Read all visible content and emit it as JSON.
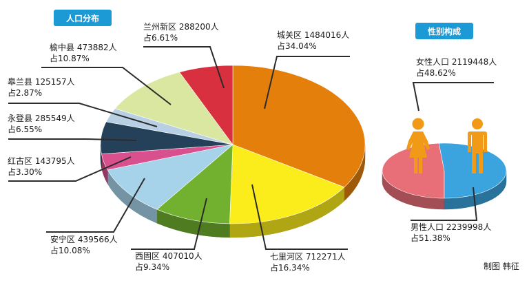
{
  "chart_data": [
    {
      "type": "pie",
      "title": "人口分布",
      "style": "3d",
      "slices": [
        {
          "name": "城关区",
          "count_label": "1484016人",
          "percent_label": "占34.04%",
          "value": 34.04,
          "color": "#e57f0c"
        },
        {
          "name": "七里河区",
          "count_label": "712271人",
          "percent_label": "占16.34%",
          "value": 16.34,
          "color": "#fbed1c"
        },
        {
          "name": "西固区",
          "count_label": "407010人",
          "percent_label": "占9.34%",
          "value": 9.34,
          "color": "#72b12f"
        },
        {
          "name": "安宁区",
          "count_label": "439566人",
          "percent_label": "占10.08%",
          "value": 10.08,
          "color": "#a6d3ea"
        },
        {
          "name": "红古区",
          "count_label": "143795人",
          "percent_label": "占3.30%",
          "value": 3.3,
          "color": "#d8508e"
        },
        {
          "name": "永登县",
          "count_label": "285549人",
          "percent_label": "占6.55%",
          "value": 6.55,
          "color": "#254159"
        },
        {
          "name": "皋兰县",
          "count_label": "125157人",
          "percent_label": "占2.87%",
          "value": 2.87,
          "color": "#b9d0e4"
        },
        {
          "name": "榆中县",
          "count_label": "473882人",
          "percent_label": "占10.87%",
          "value": 10.87,
          "color": "#d9e7a1"
        },
        {
          "name": "兰州新区",
          "count_label": "288200人",
          "percent_label": "占6.61%",
          "value": 6.61,
          "color": "#d9303f"
        }
      ]
    },
    {
      "type": "pie",
      "title": "性别构成",
      "style": "3d",
      "slices": [
        {
          "name": "女性人口",
          "count_label": "2119448人",
          "percent_label": "占48.62%",
          "value": 48.62,
          "color": "#e86f78"
        },
        {
          "name": "男性人口",
          "count_label": "2239998人",
          "percent_label": "占51.38%",
          "value": 51.38,
          "color": "#3ba3de"
        }
      ]
    }
  ],
  "credit": "制图 韩征",
  "colors": {
    "badge": "#1c9ad6",
    "leader_line": "#2b2b2b",
    "figure_icon": "#f19a18"
  },
  "icons": [
    "female-figure-icon",
    "male-figure-icon"
  ]
}
